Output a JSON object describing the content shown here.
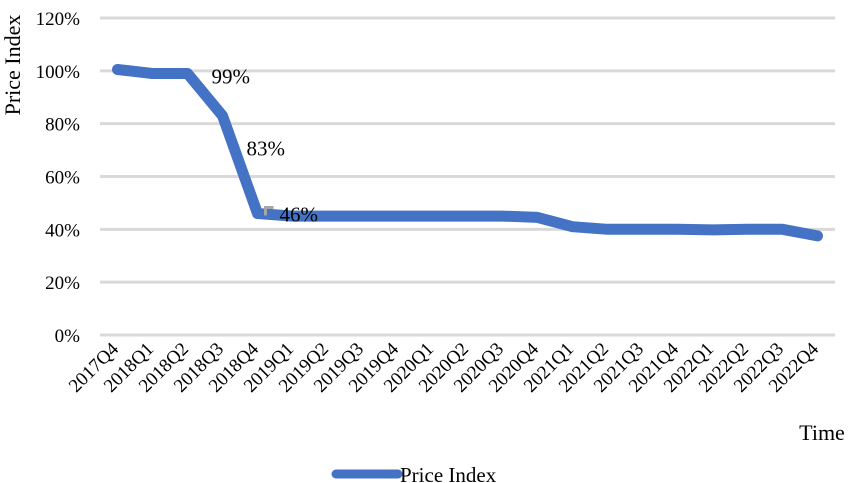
{
  "chart_data": {
    "type": "line",
    "title": "",
    "xlabel": "Time",
    "ylabel": "Price Index",
    "categories": [
      "2017Q4",
      "2018Q1",
      "2018Q2",
      "2018Q3",
      "2018Q4",
      "2019Q1",
      "2019Q2",
      "2019Q3",
      "2019Q4",
      "2020Q1",
      "2020Q2",
      "2020Q3",
      "2020Q4",
      "2021Q1",
      "2021Q2",
      "2021Q3",
      "2021Q4",
      "2022Q1",
      "2022Q2",
      "2022Q3",
      "2022Q4"
    ],
    "series": [
      {
        "name": "Price Index",
        "color": "#4472C4",
        "values": [
          100.5,
          99,
          99,
          83,
          46,
          45,
          45,
          45,
          45,
          45,
          45,
          45,
          44.5,
          41,
          40,
          40,
          40,
          39.8,
          40,
          40,
          37.5
        ]
      }
    ],
    "y_ticks": [
      "0%",
      "20%",
      "40%",
      "60%",
      "80%",
      "100%",
      "120%"
    ],
    "ylim": [
      0,
      120
    ],
    "grid": true,
    "legend_position": "bottom",
    "data_labels": [
      {
        "category": "2018Q2",
        "text": "99%"
      },
      {
        "category": "2018Q3",
        "text": "83%"
      },
      {
        "category": "2018Q4",
        "text": "46%"
      }
    ]
  }
}
